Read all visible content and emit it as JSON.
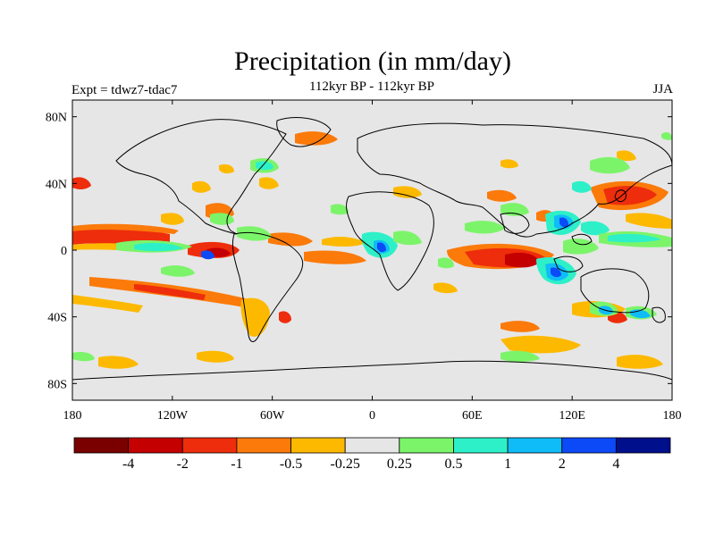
{
  "title": "Precipitation (in mm/day)",
  "left_label": "Expt = tdwz7-tdac7",
  "center_label": "112kyr BP - 112kyr BP",
  "right_label": "JJA",
  "axes": {
    "lat_ticks": [
      "80N",
      "40N",
      "0",
      "40S",
      "80S"
    ],
    "lon_ticks": [
      "180",
      "120W",
      "60W",
      "0",
      "60E",
      "120E",
      "180"
    ],
    "lat_values": [
      80,
      40,
      0,
      -40,
      -80
    ],
    "lon_values": [
      -180,
      -120,
      -60,
      0,
      60,
      120,
      180
    ]
  },
  "colorbar": {
    "colors": [
      "#7a0000",
      "#c40000",
      "#ee2d0c",
      "#fb7a0a",
      "#fdb900",
      "#e6e6e6",
      "#7cf46a",
      "#2ef0c8",
      "#0fbcf7",
      "#0c4af7",
      "#000f8c"
    ],
    "labels": [
      "-4",
      "-2",
      "-1",
      "-0.5",
      "-0.25",
      "0.25",
      "0.5",
      "1",
      "2",
      "4"
    ]
  },
  "colors": {
    "background": "#e6e6e6",
    "coastline": "#000000"
  }
}
